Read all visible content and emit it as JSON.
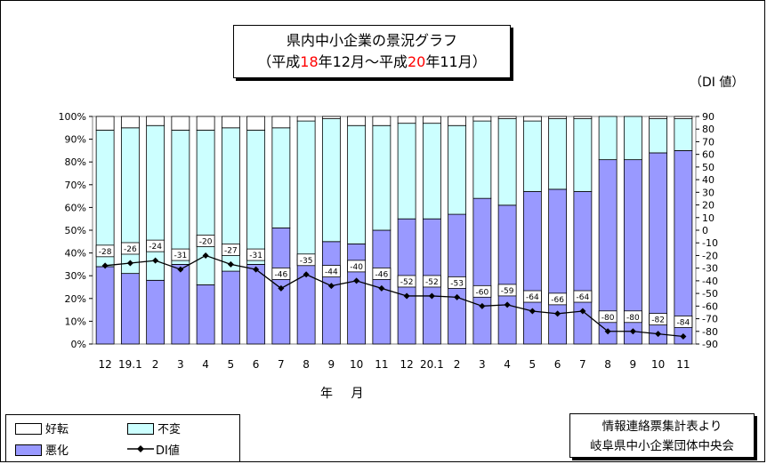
{
  "title": {
    "line1": "県内中小企業の景況グラフ",
    "line2_prefix": "（平成",
    "line2_y1": "18",
    "line2_mid": "年12月～平成",
    "line2_y2": "20",
    "line2_suffix": "年11月）"
  },
  "right_axis_unit": "（DI 値）",
  "xaxis_label": "年 月",
  "source": {
    "line1": "情報連絡票集計表より",
    "line2": "岐阜県中小企業団体中央会"
  },
  "legend": {
    "items": [
      {
        "label": "好転",
        "color": "#ffffff"
      },
      {
        "label": "不変",
        "color": "#ccffff"
      },
      {
        "label": "悪化",
        "color": "#9999ff"
      },
      {
        "label": "DI値",
        "color": "#000000"
      }
    ]
  },
  "colors": {
    "improved": "#ffffff",
    "unchanged": "#ccffff",
    "worsened": "#9999ff",
    "di_line": "#000000"
  },
  "chart_data": {
    "type": "bar",
    "stacked": true,
    "categories": [
      "12",
      "19.1",
      "2",
      "3",
      "4",
      "5",
      "6",
      "7",
      "8",
      "9",
      "10",
      "11",
      "12",
      "20.1",
      "2",
      "3",
      "4",
      "5",
      "6",
      "7",
      "8",
      "9",
      "10",
      "11"
    ],
    "series": [
      {
        "name": "悪化",
        "values": [
          34,
          31,
          28,
          35,
          26,
          32,
          35,
          51,
          37,
          45,
          44,
          50,
          55,
          55,
          57,
          64,
          61,
          67,
          68,
          67,
          81,
          81,
          84,
          85
        ]
      },
      {
        "name": "不変",
        "values": [
          60,
          64,
          68,
          59,
          68,
          63,
          59,
          44,
          61,
          54,
          52,
          46,
          42,
          42,
          39,
          34,
          38,
          31,
          31,
          32,
          19,
          19,
          15,
          14
        ]
      },
      {
        "name": "好転",
        "values": [
          6,
          5,
          4,
          6,
          6,
          5,
          6,
          5,
          2,
          1,
          4,
          4,
          3,
          3,
          4,
          2,
          1,
          2,
          1,
          1,
          0,
          0,
          1,
          1
        ]
      },
      {
        "name": "DI値",
        "axis": "right",
        "values": [
          -28,
          -26,
          -24,
          -31,
          -20,
          -27,
          -31,
          -46,
          -35,
          -44,
          -40,
          -46,
          -52,
          -52,
          -53,
          -60,
          -59,
          -64,
          -66,
          -64,
          -80,
          -80,
          -82,
          -84
        ]
      }
    ],
    "left_axis": {
      "ticks": [
        "0%",
        "10%",
        "20%",
        "30%",
        "40%",
        "50%",
        "60%",
        "70%",
        "80%",
        "90%",
        "100%"
      ],
      "ylim": [
        0,
        100
      ]
    },
    "right_axis": {
      "ticks": [
        "-90",
        "-80",
        "-70",
        "-60",
        "-50",
        "-40",
        "-30",
        "-20",
        "-10",
        "0",
        "10",
        "20",
        "30",
        "40",
        "50",
        "60",
        "70",
        "80",
        "90"
      ],
      "ylim": [
        -90,
        90
      ]
    },
    "di_labels": [
      "-28",
      "-26",
      "-24",
      "-31",
      "-20",
      "-27",
      "-31",
      "-46",
      "-35",
      "-44",
      "-40",
      "-46",
      "-52",
      "-52",
      "-53",
      "-60",
      "-59",
      "-64",
      "-66",
      "-64",
      "-80",
      "-80",
      "-82",
      "-84"
    ]
  }
}
